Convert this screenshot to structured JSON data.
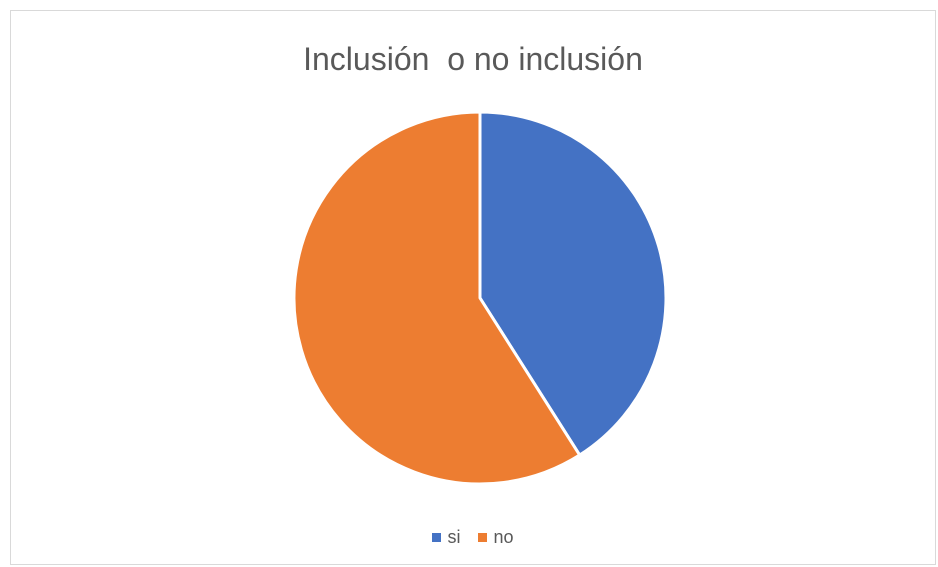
{
  "chart_data": {
    "type": "pie",
    "title": "Inclusión  o no inclusión",
    "categories": [
      "si",
      "no"
    ],
    "values": [
      41,
      59
    ],
    "colors": [
      "#4472c4",
      "#ed7d31"
    ],
    "start_angle_deg": 0,
    "direction": "clockwise",
    "legend_position": "bottom"
  }
}
